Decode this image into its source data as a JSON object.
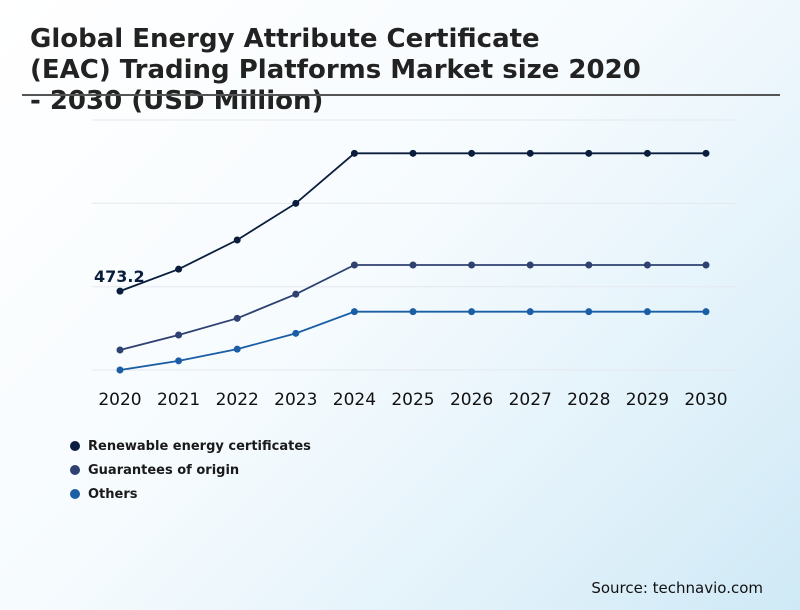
{
  "chart_data": {
    "type": "line",
    "title_lines": [
      "Global Energy Attribute Certificate",
      "(EAC) Trading Platforms Market size 2020",
      "- 2030 (USD Million)"
    ],
    "categories": [
      "2020",
      "2021",
      "2022",
      "2023",
      "2024",
      "2025",
      "2026",
      "2027",
      "2028",
      "2029",
      "2030"
    ],
    "series": [
      {
        "name": "Renewable energy certificates",
        "color": "#0b1d3d",
        "values": [
          473.2,
          605,
          780,
          1000,
          1300,
          1300,
          1300,
          1300,
          1300,
          1300,
          1300
        ]
      },
      {
        "name": "Guarantees of origin",
        "color": "#2f4170",
        "values": [
          120,
          210,
          310,
          455,
          630,
          630,
          630,
          630,
          630,
          630,
          630
        ]
      },
      {
        "name": "Others",
        "color": "#1a5ea5",
        "values": [
          0,
          55,
          125,
          220,
          350,
          350,
          350,
          350,
          350,
          350,
          350
        ]
      }
    ],
    "annotation": {
      "series_index": 0,
      "point_index": 0,
      "text": "473.2"
    },
    "ylim": [
      0,
      1500
    ],
    "grid": true,
    "legend_position": "bottom-left"
  },
  "source": "Source: technavio.com"
}
